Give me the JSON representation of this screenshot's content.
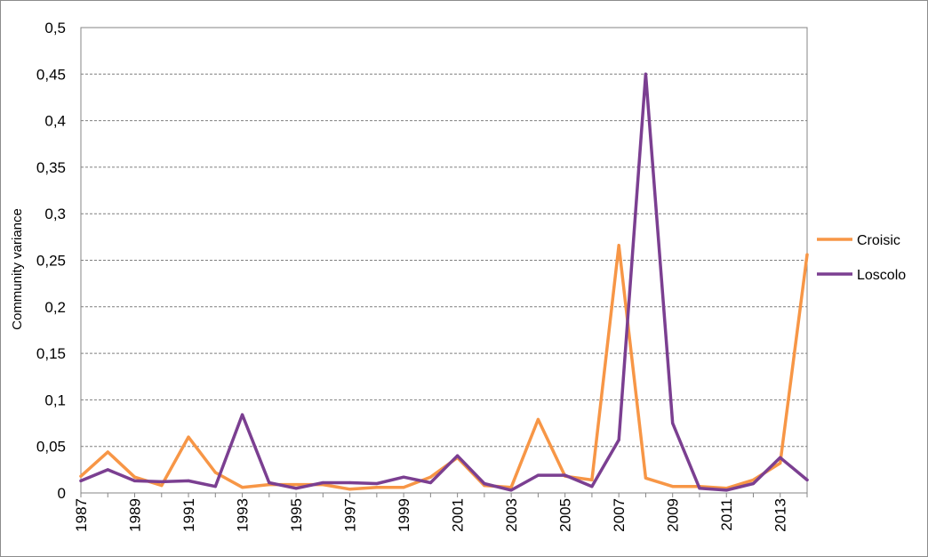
{
  "chart_data": {
    "type": "line",
    "title": "",
    "xlabel": "",
    "ylabel": "Community variance",
    "ylim": [
      0,
      0.5
    ],
    "y_ticks": [
      0,
      0.05,
      0.1,
      0.15,
      0.2,
      0.25,
      0.3,
      0.35,
      0.4,
      0.45,
      0.5
    ],
    "y_tick_labels": [
      "0",
      "0,05",
      "0,1",
      "0,15",
      "0,2",
      "0,25",
      "0,3",
      "0,35",
      "0,4",
      "0,45",
      "0,5"
    ],
    "x": [
      1987,
      1988,
      1989,
      1990,
      1991,
      1992,
      1993,
      1994,
      1995,
      1996,
      1997,
      1998,
      1999,
      2000,
      2001,
      2002,
      2003,
      2004,
      2005,
      2006,
      2007,
      2008,
      2009,
      2010,
      2011,
      2012,
      2013,
      2014
    ],
    "x_tick_labels": [
      "1987",
      "1989",
      "1991",
      "1993",
      "1995",
      "1997",
      "1999",
      "2001",
      "2003",
      "2005",
      "2007",
      "2009",
      "2011",
      "2013"
    ],
    "grid": "horizontal",
    "legend_position": "right",
    "series": [
      {
        "name": "Croisic",
        "color": "#F79646",
        "values": [
          0.018,
          0.044,
          0.017,
          0.008,
          0.06,
          0.022,
          0.006,
          0.009,
          0.009,
          0.009,
          0.004,
          0.006,
          0.006,
          0.017,
          0.038,
          0.008,
          0.006,
          0.079,
          0.018,
          0.014,
          0.266,
          0.016,
          0.007,
          0.007,
          0.005,
          0.014,
          0.032,
          0.256
        ]
      },
      {
        "name": "Loscolo",
        "color": "#7B3F91",
        "values": [
          0.013,
          0.025,
          0.013,
          0.012,
          0.013,
          0.007,
          0.084,
          0.011,
          0.005,
          0.011,
          0.011,
          0.01,
          0.017,
          0.011,
          0.04,
          0.01,
          0.003,
          0.019,
          0.019,
          0.007,
          0.057,
          0.45,
          0.075,
          0.005,
          0.003,
          0.01,
          0.038,
          0.014
        ]
      }
    ]
  }
}
